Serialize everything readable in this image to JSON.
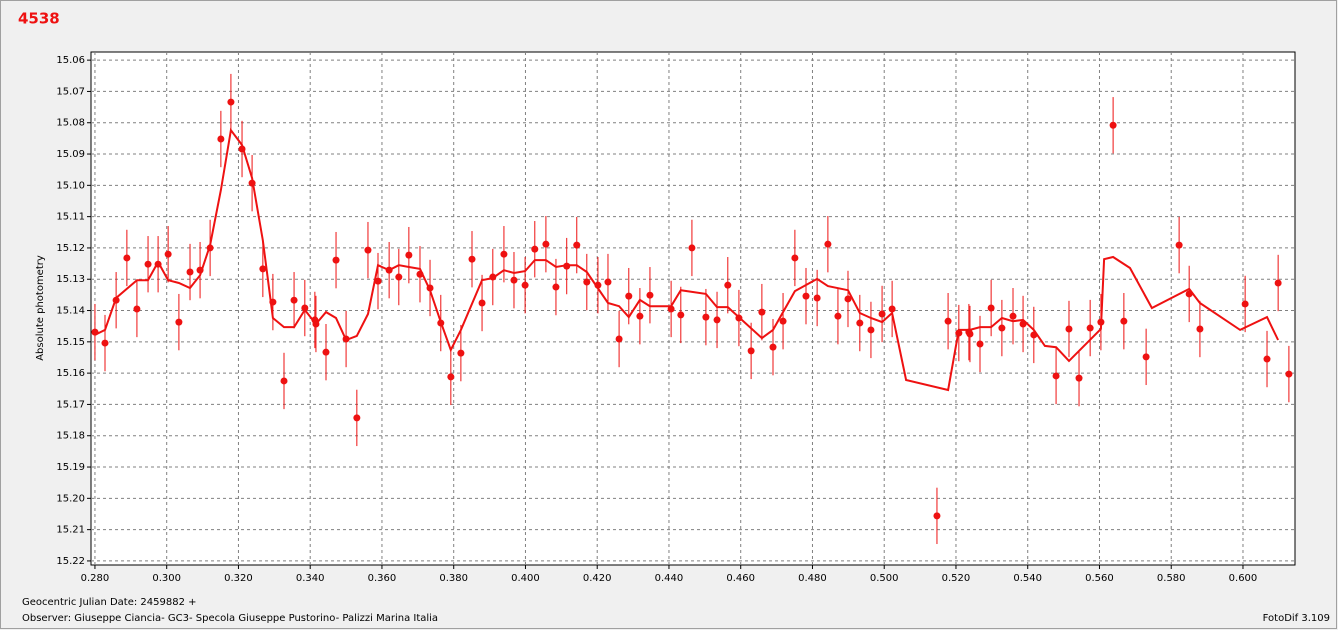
{
  "chart_data": {
    "type": "scatter",
    "title": "4538",
    "y_label": "Absolute photometry",
    "x_note": "Geocentric Julian Date: 2459882 +",
    "observer": "Observer: Giuseppe Ciancia- GC3- Specola Giuseppe Pustorino- Palizzi Marina Italia",
    "software": "FotoDif 3.109",
    "xlim": [
      0.2789,
      0.6145
    ],
    "ylim": [
      15.2213,
      15.0574
    ],
    "grid": true,
    "xticks": [
      {
        "value": 0.28,
        "label": "0.280"
      },
      {
        "value": 0.3,
        "label": "0.300"
      },
      {
        "value": 0.32,
        "label": "0.320"
      },
      {
        "value": 0.34,
        "label": "0.340"
      },
      {
        "value": 0.36,
        "label": "0.360"
      },
      {
        "value": 0.38,
        "label": "0.380"
      },
      {
        "value": 0.4,
        "label": "0.400"
      },
      {
        "value": 0.42,
        "label": "0.420"
      },
      {
        "value": 0.44,
        "label": "0.440"
      },
      {
        "value": 0.46,
        "label": "0.460"
      },
      {
        "value": 0.48,
        "label": "0.480"
      },
      {
        "value": 0.5,
        "label": "0.500"
      },
      {
        "value": 0.52,
        "label": "0.520"
      },
      {
        "value": 0.54,
        "label": "0.540"
      },
      {
        "value": 0.56,
        "label": "0.560"
      },
      {
        "value": 0.58,
        "label": "0.580"
      },
      {
        "value": 0.6,
        "label": "0.600"
      }
    ],
    "yticks": [
      15.06,
      15.07,
      15.08,
      15.09,
      {
        "value": 15.1,
        "label": "15.10"
      },
      15.11,
      15.12,
      15.13,
      15.14,
      15.15,
      15.16,
      15.17,
      15.18,
      15.19,
      {
        "value": 15.2,
        "label": "15.20"
      },
      15.21,
      15.22
    ],
    "series": [
      {
        "color": "#ee1111",
        "yerr": 0.009,
        "x": [
          0.28,
          0.2828,
          0.2859,
          0.2889,
          0.2917,
          0.2948,
          0.2976,
          0.3004,
          0.3034,
          0.3065,
          0.3093,
          0.3121,
          0.3151,
          0.3179,
          0.321,
          0.3238,
          0.3268,
          0.3296,
          0.3327,
          0.3355,
          0.3385,
          0.3413,
          0.3416,
          0.3444,
          0.3472,
          0.35,
          0.353,
          0.3561,
          0.3589,
          0.362,
          0.3647,
          0.3675,
          0.3706,
          0.3734,
          0.3764,
          0.3792,
          0.382,
          0.3851,
          0.3879,
          0.3909,
          0.394,
          0.3968,
          0.3999,
          0.4026,
          0.4057,
          0.4085,
          0.4115,
          0.4143,
          0.4171,
          0.4202,
          0.423,
          0.4261,
          0.4288,
          0.4319,
          0.4347,
          0.4406,
          0.4433,
          0.4464,
          0.4503,
          0.4534,
          0.4564,
          0.4595,
          0.4629,
          0.4659,
          0.469,
          0.4718,
          0.4751,
          0.4782,
          0.4813,
          0.4843,
          0.4871,
          0.4899,
          0.4932,
          0.4963,
          0.4994,
          0.5022,
          0.5147,
          0.5178,
          0.5208,
          0.5236,
          0.5239,
          0.5267,
          0.5298,
          0.5328,
          0.5359,
          0.5387,
          0.5417,
          0.5479,
          0.5515,
          0.5543,
          0.5574,
          0.5604,
          0.5638,
          0.5668,
          0.573,
          0.5822,
          0.585,
          0.588,
          0.6006,
          0.6067,
          0.6098,
          0.6128
        ],
        "y": [
          15.1469,
          15.1504,
          15.1367,
          15.1232,
          15.1395,
          15.1252,
          15.1252,
          15.122,
          15.1437,
          15.1277,
          15.1271,
          15.12,
          15.0852,
          15.0734,
          15.0884,
          15.0993,
          15.1267,
          15.1373,
          15.1625,
          15.1367,
          15.1392,
          15.143,
          15.1443,
          15.1533,
          15.1239,
          15.1491,
          15.1743,
          15.1207,
          15.1306,
          15.1271,
          15.1293,
          15.1223,
          15.1284,
          15.1328,
          15.144,
          15.1612,
          15.1536,
          15.1236,
          15.1376,
          15.1293,
          15.122,
          15.1303,
          15.1319,
          15.1204,
          15.1188,
          15.1325,
          15.1258,
          15.1191,
          15.1309,
          15.1319,
          15.1309,
          15.1491,
          15.1354,
          15.1418,
          15.1351,
          15.1395,
          15.1414,
          15.12,
          15.1421,
          15.143,
          15.1319,
          15.1424,
          15.1529,
          15.1405,
          15.1517,
          15.1434,
          15.1232,
          15.1354,
          15.136,
          15.1188,
          15.1418,
          15.1363,
          15.144,
          15.1462,
          15.1411,
          15.1395,
          15.2056,
          15.1434,
          15.1472,
          15.1469,
          15.1475,
          15.1507,
          15.1392,
          15.1456,
          15.1418,
          15.1443,
          15.1478,
          15.1609,
          15.1459,
          15.1616,
          15.1456,
          15.1437,
          15.0808,
          15.1434,
          15.1548,
          15.1191,
          15.1347,
          15.1459,
          15.1379,
          15.1555,
          15.1312,
          15.1603
        ]
      },
      {
        "color": "#ee1111",
        "line": true,
        "x": [
          0.28,
          0.2828,
          0.2859,
          0.2917,
          0.2948,
          0.2976,
          0.3004,
          0.3034,
          0.3065,
          0.3093,
          0.3121,
          0.3151,
          0.3179,
          0.321,
          0.3238,
          0.3268,
          0.3296,
          0.3327,
          0.3355,
          0.3385,
          0.3416,
          0.3444,
          0.3472,
          0.35,
          0.353,
          0.3561,
          0.3589,
          0.362,
          0.3647,
          0.3675,
          0.3706,
          0.3734,
          0.3764,
          0.3792,
          0.382,
          0.3879,
          0.3909,
          0.394,
          0.3968,
          0.3999,
          0.4026,
          0.4057,
          0.4085,
          0.4115,
          0.4143,
          0.4171,
          0.423,
          0.4261,
          0.4288,
          0.4319,
          0.4347,
          0.4406,
          0.4433,
          0.4503,
          0.4534,
          0.4564,
          0.4659,
          0.469,
          0.4751,
          0.4813,
          0.4843,
          0.4899,
          0.4932,
          0.4963,
          0.4994,
          0.5022,
          0.5061,
          0.5178,
          0.5208,
          0.5239,
          0.5267,
          0.5298,
          0.5328,
          0.5359,
          0.5387,
          0.5417,
          0.5448,
          0.5479,
          0.5515,
          0.5543,
          0.5604,
          0.5613,
          0.5638,
          0.5685,
          0.5746,
          0.585,
          0.588,
          0.5992,
          0.6067,
          0.6098
        ],
        "y": [
          15.1478,
          15.1462,
          15.136,
          15.1303,
          15.1303,
          15.1245,
          15.1303,
          15.1312,
          15.1328,
          15.1287,
          15.1191,
          15.1015,
          15.0824,
          15.0871,
          15.0977,
          15.1175,
          15.1424,
          15.1453,
          15.1453,
          15.1398,
          15.1443,
          15.1405,
          15.1424,
          15.1494,
          15.1481,
          15.1411,
          15.1255,
          15.1271,
          15.1255,
          15.1261,
          15.1267,
          15.1335,
          15.1437,
          15.1526,
          15.1462,
          15.1303,
          15.1296,
          15.1271,
          15.128,
          15.1274,
          15.1239,
          15.1239,
          15.1261,
          15.1255,
          15.1255,
          15.1277,
          15.1376,
          15.1386,
          15.1421,
          15.1366,
          15.1386,
          15.1386,
          15.1335,
          15.1347,
          15.1389,
          15.1389,
          15.1488,
          15.1462,
          15.1338,
          15.1299,
          15.1322,
          15.1335,
          15.1408,
          15.1424,
          15.1437,
          15.1408,
          15.1622,
          15.1654,
          15.1462,
          15.1462,
          15.1453,
          15.1453,
          15.1424,
          15.1434,
          15.143,
          15.1462,
          15.1513,
          15.1517,
          15.1561,
          15.1529,
          15.1459,
          15.1236,
          15.1229,
          15.1264,
          15.1392,
          15.1331,
          15.1376,
          15.1462,
          15.1421,
          15.1494
        ]
      }
    ]
  }
}
